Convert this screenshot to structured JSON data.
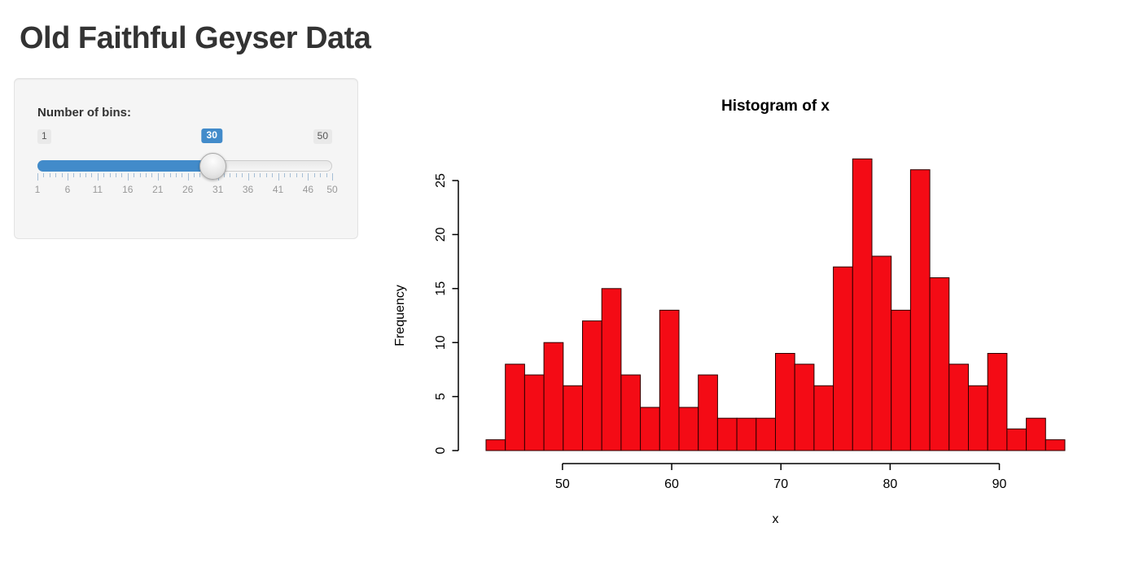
{
  "title": "Old Faithful Geyser Data",
  "sidebar": {
    "slider": {
      "label": "Number of bins:",
      "min": 1,
      "max": 50,
      "value": 30,
      "min_label": "1",
      "max_label": "50",
      "value_label": "30",
      "grid_labels": [
        "1",
        "6",
        "11",
        "16",
        "21",
        "26",
        "31",
        "36",
        "41",
        "46",
        "50"
      ],
      "accent_color": "#428bca"
    }
  },
  "chart_data": {
    "type": "bar",
    "subtype": "histogram",
    "title": "Histogram of x",
    "xlabel": "x",
    "ylabel": "Frequency",
    "bin_start": 43,
    "bin_end": 96,
    "bin_count": 30,
    "counts": [
      1,
      8,
      7,
      10,
      6,
      12,
      15,
      7,
      4,
      13,
      4,
      7,
      3,
      3,
      3,
      9,
      8,
      6,
      17,
      27,
      18,
      13,
      26,
      16,
      8,
      6,
      9,
      2,
      3,
      1
    ],
    "x_ticks": [
      50,
      60,
      70,
      80,
      90
    ],
    "y_ticks": [
      0,
      5,
      10,
      15,
      20,
      25
    ],
    "ylim": [
      0,
      27
    ],
    "grid": false,
    "legend": false,
    "bar_color": "#f40b15",
    "bar_border": "#2d0000"
  }
}
